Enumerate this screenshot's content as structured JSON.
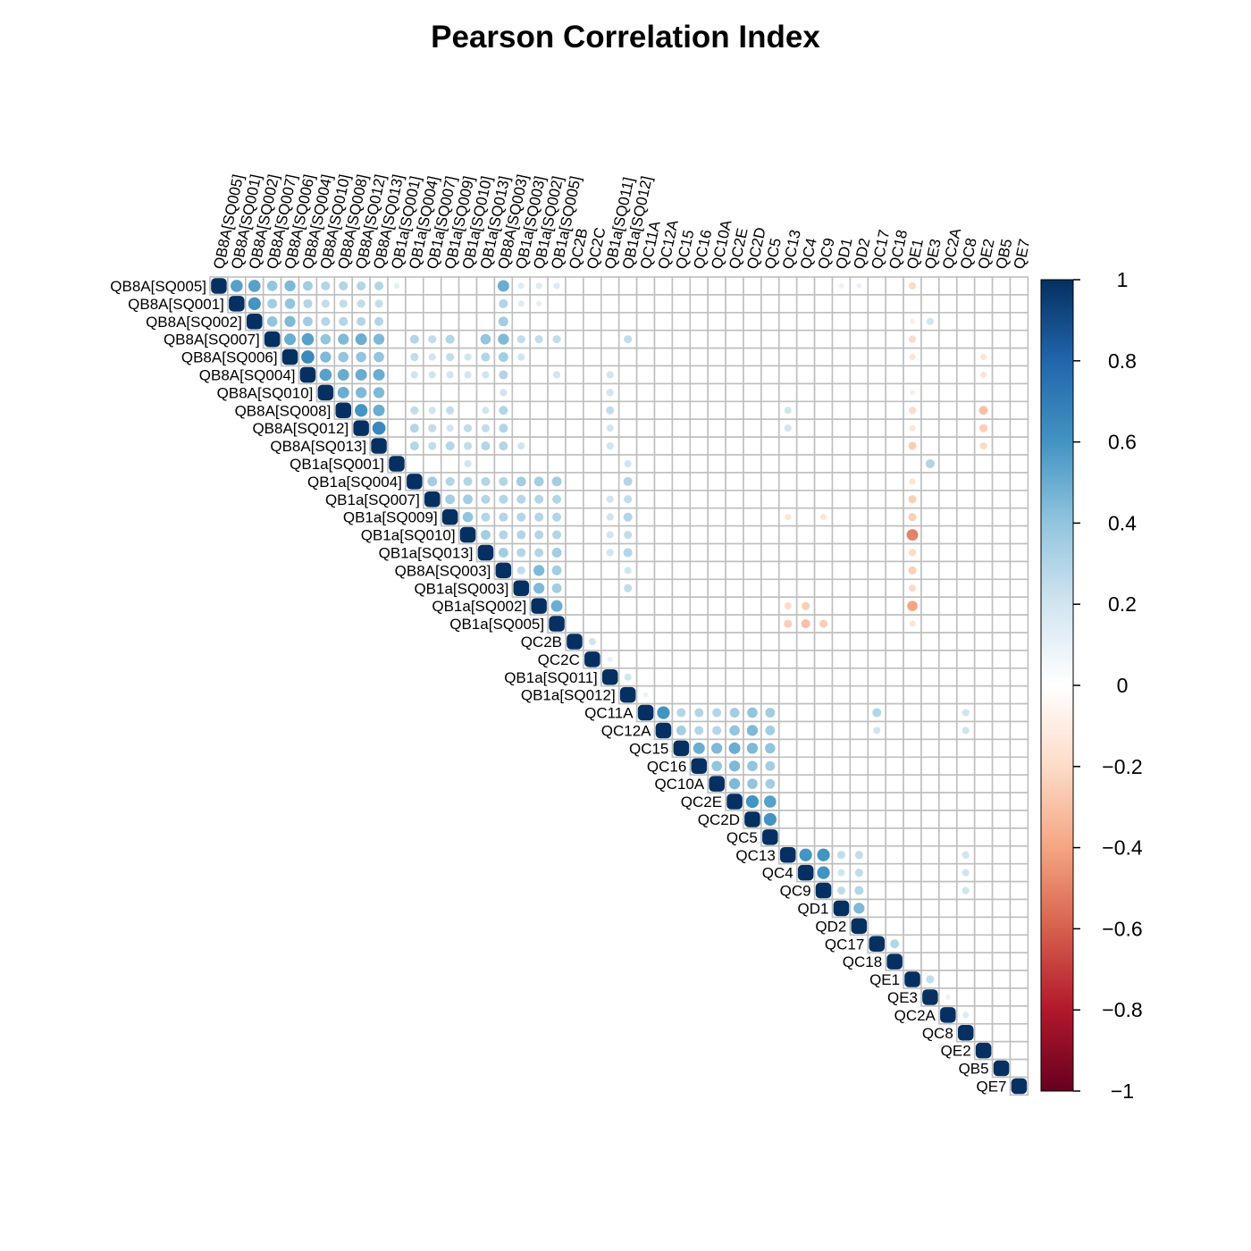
{
  "chart_data": {
    "type": "heatmap",
    "title": "Pearson Correlation Index",
    "variables": [
      "QB8A[SQ005]",
      "QB8A[SQ001]",
      "QB8A[SQ002]",
      "QB8A[SQ007]",
      "QB8A[SQ006]",
      "QB8A[SQ004]",
      "QB8A[SQ010]",
      "QB8A[SQ008]",
      "QB8A[SQ012]",
      "QB8A[SQ013]",
      "QB1a[SQ001]",
      "QB1a[SQ004]",
      "QB1a[SQ007]",
      "QB1a[SQ009]",
      "QB1a[SQ010]",
      "QB1a[SQ013]",
      "QB8A[SQ003]",
      "QB1a[SQ003]",
      "QB1a[SQ002]",
      "QB1a[SQ005]",
      "QC2B",
      "QC2C",
      "QB1a[SQ011]",
      "QB1a[SQ012]",
      "QC11A",
      "QC12A",
      "QC15",
      "QC16",
      "QC10A",
      "QC2E",
      "QC2D",
      "QC5",
      "QC13",
      "QC4",
      "QC9",
      "QD1",
      "QD2",
      "QC17",
      "QC18",
      "QE1",
      "QE3",
      "QC2A",
      "QC8",
      "QE2",
      "QB5",
      "QE7"
    ],
    "correlations": [
      {
        "row": 0,
        "col": 1,
        "value": 0.55
      },
      {
        "row": 0,
        "col": 2,
        "value": 0.55
      },
      {
        "row": 0,
        "col": 3,
        "value": 0.4
      },
      {
        "row": 0,
        "col": 4,
        "value": 0.45
      },
      {
        "row": 0,
        "col": 5,
        "value": 0.35
      },
      {
        "row": 0,
        "col": 6,
        "value": 0.3
      },
      {
        "row": 0,
        "col": 7,
        "value": 0.3
      },
      {
        "row": 0,
        "col": 8,
        "value": 0.3
      },
      {
        "row": 0,
        "col": 9,
        "value": 0.3
      },
      {
        "row": 0,
        "col": 10,
        "value": 0.12
      },
      {
        "row": 0,
        "col": 16,
        "value": 0.5
      },
      {
        "row": 0,
        "col": 17,
        "value": 0.15
      },
      {
        "row": 0,
        "col": 18,
        "value": 0.15
      },
      {
        "row": 0,
        "col": 19,
        "value": 0.15
      },
      {
        "row": 0,
        "col": 35,
        "value": 0.1
      },
      {
        "row": 0,
        "col": 36,
        "value": 0.1
      },
      {
        "row": 0,
        "col": 39,
        "value": -0.2
      },
      {
        "row": 1,
        "col": 2,
        "value": 0.6
      },
      {
        "row": 1,
        "col": 3,
        "value": 0.35
      },
      {
        "row": 1,
        "col": 4,
        "value": 0.4
      },
      {
        "row": 1,
        "col": 5,
        "value": 0.3
      },
      {
        "row": 1,
        "col": 6,
        "value": 0.25
      },
      {
        "row": 1,
        "col": 7,
        "value": 0.25
      },
      {
        "row": 1,
        "col": 8,
        "value": 0.25
      },
      {
        "row": 1,
        "col": 9,
        "value": 0.25
      },
      {
        "row": 1,
        "col": 16,
        "value": 0.3
      },
      {
        "row": 1,
        "col": 17,
        "value": 0.15
      },
      {
        "row": 1,
        "col": 18,
        "value": 0.12
      },
      {
        "row": 2,
        "col": 3,
        "value": 0.4
      },
      {
        "row": 2,
        "col": 4,
        "value": 0.45
      },
      {
        "row": 2,
        "col": 5,
        "value": 0.35
      },
      {
        "row": 2,
        "col": 6,
        "value": 0.3
      },
      {
        "row": 2,
        "col": 7,
        "value": 0.3
      },
      {
        "row": 2,
        "col": 8,
        "value": 0.3
      },
      {
        "row": 2,
        "col": 9,
        "value": 0.3
      },
      {
        "row": 2,
        "col": 16,
        "value": 0.35
      },
      {
        "row": 2,
        "col": 39,
        "value": -0.1
      },
      {
        "row": 2,
        "col": 40,
        "value": 0.2
      },
      {
        "row": 3,
        "col": 4,
        "value": 0.5
      },
      {
        "row": 3,
        "col": 5,
        "value": 0.55
      },
      {
        "row": 3,
        "col": 6,
        "value": 0.4
      },
      {
        "row": 3,
        "col": 7,
        "value": 0.45
      },
      {
        "row": 3,
        "col": 8,
        "value": 0.5
      },
      {
        "row": 3,
        "col": 9,
        "value": 0.45
      },
      {
        "row": 3,
        "col": 11,
        "value": 0.3
      },
      {
        "row": 3,
        "col": 12,
        "value": 0.25
      },
      {
        "row": 3,
        "col": 13,
        "value": 0.3
      },
      {
        "row": 3,
        "col": 15,
        "value": 0.4
      },
      {
        "row": 3,
        "col": 16,
        "value": 0.45
      },
      {
        "row": 3,
        "col": 17,
        "value": 0.25
      },
      {
        "row": 3,
        "col": 18,
        "value": 0.25
      },
      {
        "row": 3,
        "col": 19,
        "value": 0.25
      },
      {
        "row": 3,
        "col": 23,
        "value": 0.25
      },
      {
        "row": 3,
        "col": 39,
        "value": -0.2
      },
      {
        "row": 4,
        "col": 5,
        "value": 0.65
      },
      {
        "row": 4,
        "col": 6,
        "value": 0.45
      },
      {
        "row": 4,
        "col": 7,
        "value": 0.4
      },
      {
        "row": 4,
        "col": 8,
        "value": 0.4
      },
      {
        "row": 4,
        "col": 9,
        "value": 0.4
      },
      {
        "row": 4,
        "col": 11,
        "value": 0.25
      },
      {
        "row": 4,
        "col": 12,
        "value": 0.2
      },
      {
        "row": 4,
        "col": 13,
        "value": 0.25
      },
      {
        "row": 4,
        "col": 14,
        "value": 0.2
      },
      {
        "row": 4,
        "col": 15,
        "value": 0.3
      },
      {
        "row": 4,
        "col": 16,
        "value": 0.35
      },
      {
        "row": 4,
        "col": 17,
        "value": 0.2
      },
      {
        "row": 4,
        "col": 39,
        "value": -0.15
      },
      {
        "row": 4,
        "col": 43,
        "value": -0.15
      },
      {
        "row": 5,
        "col": 6,
        "value": 0.55
      },
      {
        "row": 5,
        "col": 7,
        "value": 0.5
      },
      {
        "row": 5,
        "col": 8,
        "value": 0.5
      },
      {
        "row": 5,
        "col": 9,
        "value": 0.5
      },
      {
        "row": 5,
        "col": 11,
        "value": 0.2
      },
      {
        "row": 5,
        "col": 12,
        "value": 0.2
      },
      {
        "row": 5,
        "col": 13,
        "value": 0.2
      },
      {
        "row": 5,
        "col": 14,
        "value": 0.2
      },
      {
        "row": 5,
        "col": 15,
        "value": 0.2
      },
      {
        "row": 5,
        "col": 16,
        "value": 0.3
      },
      {
        "row": 5,
        "col": 19,
        "value": 0.2
      },
      {
        "row": 5,
        "col": 22,
        "value": 0.2
      },
      {
        "row": 5,
        "col": 43,
        "value": -0.15
      },
      {
        "row": 6,
        "col": 7,
        "value": 0.5
      },
      {
        "row": 6,
        "col": 8,
        "value": 0.45
      },
      {
        "row": 6,
        "col": 9,
        "value": 0.45
      },
      {
        "row": 6,
        "col": 16,
        "value": 0.2
      },
      {
        "row": 6,
        "col": 22,
        "value": 0.2
      },
      {
        "row": 6,
        "col": 39,
        "value": -0.1
      },
      {
        "row": 7,
        "col": 8,
        "value": 0.6
      },
      {
        "row": 7,
        "col": 9,
        "value": 0.5
      },
      {
        "row": 7,
        "col": 11,
        "value": 0.25
      },
      {
        "row": 7,
        "col": 12,
        "value": 0.2
      },
      {
        "row": 7,
        "col": 13,
        "value": 0.25
      },
      {
        "row": 7,
        "col": 15,
        "value": 0.2
      },
      {
        "row": 7,
        "col": 16,
        "value": 0.3
      },
      {
        "row": 7,
        "col": 22,
        "value": 0.25
      },
      {
        "row": 7,
        "col": 32,
        "value": 0.2
      },
      {
        "row": 7,
        "col": 39,
        "value": -0.2
      },
      {
        "row": 7,
        "col": 43,
        "value": -0.3
      },
      {
        "row": 8,
        "col": 9,
        "value": 0.65
      },
      {
        "row": 8,
        "col": 11,
        "value": 0.3
      },
      {
        "row": 8,
        "col": 12,
        "value": 0.25
      },
      {
        "row": 8,
        "col": 13,
        "value": 0.2
      },
      {
        "row": 8,
        "col": 14,
        "value": 0.25
      },
      {
        "row": 8,
        "col": 15,
        "value": 0.25
      },
      {
        "row": 8,
        "col": 16,
        "value": 0.3
      },
      {
        "row": 8,
        "col": 22,
        "value": 0.2
      },
      {
        "row": 8,
        "col": 32,
        "value": 0.2
      },
      {
        "row": 8,
        "col": 39,
        "value": -0.15
      },
      {
        "row": 8,
        "col": 43,
        "value": -0.25
      },
      {
        "row": 9,
        "col": 11,
        "value": 0.3
      },
      {
        "row": 9,
        "col": 12,
        "value": 0.25
      },
      {
        "row": 9,
        "col": 13,
        "value": 0.3
      },
      {
        "row": 9,
        "col": 14,
        "value": 0.25
      },
      {
        "row": 9,
        "col": 15,
        "value": 0.3
      },
      {
        "row": 9,
        "col": 16,
        "value": 0.3
      },
      {
        "row": 9,
        "col": 17,
        "value": 0.2
      },
      {
        "row": 9,
        "col": 22,
        "value": 0.2
      },
      {
        "row": 9,
        "col": 39,
        "value": -0.25
      },
      {
        "row": 9,
        "col": 43,
        "value": -0.2
      },
      {
        "row": 10,
        "col": 14,
        "value": 0.2
      },
      {
        "row": 10,
        "col": 23,
        "value": 0.2
      },
      {
        "row": 10,
        "col": 40,
        "value": 0.3
      },
      {
        "row": 11,
        "col": 12,
        "value": 0.35
      },
      {
        "row": 11,
        "col": 13,
        "value": 0.3
      },
      {
        "row": 11,
        "col": 14,
        "value": 0.3
      },
      {
        "row": 11,
        "col": 15,
        "value": 0.3
      },
      {
        "row": 11,
        "col": 16,
        "value": 0.3
      },
      {
        "row": 11,
        "col": 17,
        "value": 0.35
      },
      {
        "row": 11,
        "col": 18,
        "value": 0.35
      },
      {
        "row": 11,
        "col": 19,
        "value": 0.35
      },
      {
        "row": 11,
        "col": 23,
        "value": 0.3
      },
      {
        "row": 11,
        "col": 39,
        "value": -0.15
      },
      {
        "row": 12,
        "col": 13,
        "value": 0.35
      },
      {
        "row": 12,
        "col": 14,
        "value": 0.35
      },
      {
        "row": 12,
        "col": 15,
        "value": 0.3
      },
      {
        "row": 12,
        "col": 16,
        "value": 0.3
      },
      {
        "row": 12,
        "col": 17,
        "value": 0.3
      },
      {
        "row": 12,
        "col": 18,
        "value": 0.3
      },
      {
        "row": 12,
        "col": 19,
        "value": 0.3
      },
      {
        "row": 12,
        "col": 22,
        "value": 0.2
      },
      {
        "row": 12,
        "col": 23,
        "value": 0.25
      },
      {
        "row": 12,
        "col": 39,
        "value": -0.25
      },
      {
        "row": 13,
        "col": 14,
        "value": 0.4
      },
      {
        "row": 13,
        "col": 15,
        "value": 0.3
      },
      {
        "row": 13,
        "col": 16,
        "value": 0.3
      },
      {
        "row": 13,
        "col": 17,
        "value": 0.3
      },
      {
        "row": 13,
        "col": 18,
        "value": 0.3
      },
      {
        "row": 13,
        "col": 19,
        "value": 0.3
      },
      {
        "row": 13,
        "col": 22,
        "value": 0.2
      },
      {
        "row": 13,
        "col": 23,
        "value": 0.3
      },
      {
        "row": 13,
        "col": 32,
        "value": -0.15
      },
      {
        "row": 13,
        "col": 34,
        "value": -0.15
      },
      {
        "row": 13,
        "col": 39,
        "value": -0.25
      },
      {
        "row": 14,
        "col": 15,
        "value": 0.35
      },
      {
        "row": 14,
        "col": 16,
        "value": 0.3
      },
      {
        "row": 14,
        "col": 17,
        "value": 0.3
      },
      {
        "row": 14,
        "col": 18,
        "value": 0.3
      },
      {
        "row": 14,
        "col": 19,
        "value": 0.3
      },
      {
        "row": 14,
        "col": 22,
        "value": 0.2
      },
      {
        "row": 14,
        "col": 23,
        "value": 0.25
      },
      {
        "row": 14,
        "col": 39,
        "value": -0.5
      },
      {
        "row": 15,
        "col": 16,
        "value": 0.35
      },
      {
        "row": 15,
        "col": 17,
        "value": 0.3
      },
      {
        "row": 15,
        "col": 18,
        "value": 0.3
      },
      {
        "row": 15,
        "col": 19,
        "value": 0.35
      },
      {
        "row": 15,
        "col": 22,
        "value": 0.2
      },
      {
        "row": 15,
        "col": 23,
        "value": 0.3
      },
      {
        "row": 15,
        "col": 39,
        "value": -0.2
      },
      {
        "row": 16,
        "col": 17,
        "value": 0.25
      },
      {
        "row": 16,
        "col": 18,
        "value": 0.45
      },
      {
        "row": 16,
        "col": 19,
        "value": 0.35
      },
      {
        "row": 16,
        "col": 23,
        "value": 0.2
      },
      {
        "row": 16,
        "col": 39,
        "value": -0.25
      },
      {
        "row": 17,
        "col": 18,
        "value": 0.45
      },
      {
        "row": 17,
        "col": 19,
        "value": 0.35
      },
      {
        "row": 17,
        "col": 23,
        "value": 0.25
      },
      {
        "row": 17,
        "col": 39,
        "value": -0.2
      },
      {
        "row": 18,
        "col": 19,
        "value": 0.5
      },
      {
        "row": 18,
        "col": 32,
        "value": -0.2
      },
      {
        "row": 18,
        "col": 33,
        "value": -0.25
      },
      {
        "row": 18,
        "col": 39,
        "value": -0.4
      },
      {
        "row": 19,
        "col": 32,
        "value": -0.25
      },
      {
        "row": 19,
        "col": 33,
        "value": -0.3
      },
      {
        "row": 19,
        "col": 34,
        "value": -0.25
      },
      {
        "row": 19,
        "col": 39,
        "value": -0.15
      },
      {
        "row": 20,
        "col": 21,
        "value": 0.2
      },
      {
        "row": 21,
        "col": 22,
        "value": 0.1
      },
      {
        "row": 22,
        "col": 23,
        "value": 0.2
      },
      {
        "row": 23,
        "col": 24,
        "value": 0.1
      },
      {
        "row": 24,
        "col": 25,
        "value": 0.6
      },
      {
        "row": 24,
        "col": 26,
        "value": 0.3
      },
      {
        "row": 24,
        "col": 27,
        "value": 0.3
      },
      {
        "row": 24,
        "col": 28,
        "value": 0.3
      },
      {
        "row": 24,
        "col": 29,
        "value": 0.35
      },
      {
        "row": 24,
        "col": 30,
        "value": 0.4
      },
      {
        "row": 24,
        "col": 31,
        "value": 0.35
      },
      {
        "row": 24,
        "col": 37,
        "value": 0.3
      },
      {
        "row": 24,
        "col": 42,
        "value": 0.2
      },
      {
        "row": 25,
        "col": 26,
        "value": 0.35
      },
      {
        "row": 25,
        "col": 27,
        "value": 0.3
      },
      {
        "row": 25,
        "col": 28,
        "value": 0.3
      },
      {
        "row": 25,
        "col": 29,
        "value": 0.4
      },
      {
        "row": 25,
        "col": 30,
        "value": 0.45
      },
      {
        "row": 25,
        "col": 31,
        "value": 0.35
      },
      {
        "row": 25,
        "col": 37,
        "value": 0.2
      },
      {
        "row": 25,
        "col": 42,
        "value": 0.2
      },
      {
        "row": 26,
        "col": 27,
        "value": 0.5
      },
      {
        "row": 26,
        "col": 28,
        "value": 0.45
      },
      {
        "row": 26,
        "col": 29,
        "value": 0.5
      },
      {
        "row": 26,
        "col": 30,
        "value": 0.45
      },
      {
        "row": 26,
        "col": 31,
        "value": 0.4
      },
      {
        "row": 27,
        "col": 28,
        "value": 0.4
      },
      {
        "row": 27,
        "col": 29,
        "value": 0.45
      },
      {
        "row": 27,
        "col": 30,
        "value": 0.4
      },
      {
        "row": 27,
        "col": 31,
        "value": 0.35
      },
      {
        "row": 28,
        "col": 29,
        "value": 0.45
      },
      {
        "row": 28,
        "col": 30,
        "value": 0.4
      },
      {
        "row": 28,
        "col": 31,
        "value": 0.35
      },
      {
        "row": 29,
        "col": 30,
        "value": 0.6
      },
      {
        "row": 29,
        "col": 31,
        "value": 0.55
      },
      {
        "row": 30,
        "col": 31,
        "value": 0.6
      },
      {
        "row": 32,
        "col": 33,
        "value": 0.6
      },
      {
        "row": 32,
        "col": 34,
        "value": 0.6
      },
      {
        "row": 32,
        "col": 35,
        "value": 0.25
      },
      {
        "row": 32,
        "col": 36,
        "value": 0.25
      },
      {
        "row": 32,
        "col": 42,
        "value": 0.2
      },
      {
        "row": 33,
        "col": 34,
        "value": 0.6
      },
      {
        "row": 33,
        "col": 35,
        "value": 0.2
      },
      {
        "row": 33,
        "col": 36,
        "value": 0.25
      },
      {
        "row": 33,
        "col": 42,
        "value": 0.2
      },
      {
        "row": 34,
        "col": 35,
        "value": 0.25
      },
      {
        "row": 34,
        "col": 36,
        "value": 0.3
      },
      {
        "row": 34,
        "col": 42,
        "value": 0.2
      },
      {
        "row": 35,
        "col": 36,
        "value": 0.45
      },
      {
        "row": 37,
        "col": 38,
        "value": 0.3
      },
      {
        "row": 39,
        "col": 40,
        "value": 0.25
      },
      {
        "row": 40,
        "col": 41,
        "value": 0.1
      },
      {
        "row": 41,
        "col": 42,
        "value": 0.15
      }
    ],
    "colorbar": {
      "range": [
        -1,
        1
      ],
      "tick_labels": [
        "1",
        "0.8",
        "0.6",
        "0.4",
        "0.2",
        "0",
        "−0.2",
        "−0.4",
        "−0.6",
        "−0.8",
        "−1"
      ],
      "tick_values": [
        1,
        0.8,
        0.6,
        0.4,
        0.2,
        0,
        -0.2,
        -0.4,
        -0.6,
        -0.8,
        -1
      ],
      "colors": [
        "#67001F",
        "#B2182B",
        "#D6604D",
        "#F4A582",
        "#FDDBC7",
        "#FFFFFF",
        "#D1E5F0",
        "#92C5DE",
        "#4393C3",
        "#2166AC",
        "#053061"
      ]
    },
    "layout": "upper-triangle",
    "method": "circle",
    "grid": true
  }
}
